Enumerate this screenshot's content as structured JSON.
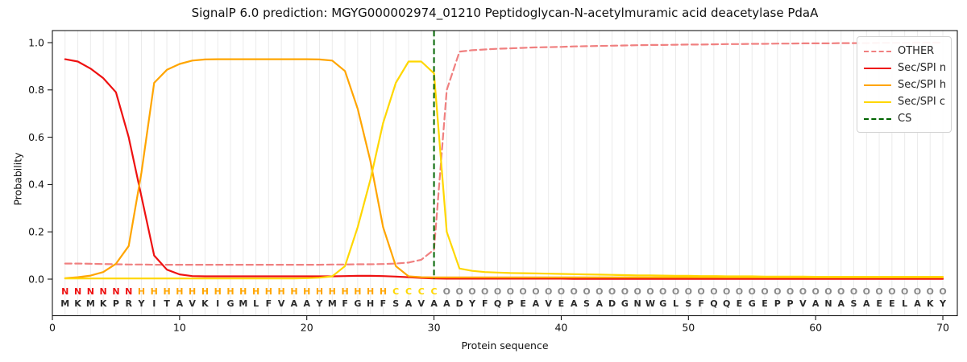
{
  "figure": {
    "title": "SignalP 6.0 prediction: MGYG000002974_01210 Peptidoglycan-N-acetylmuramic acid deacetylase PdaA"
  },
  "axes": {
    "xlabel": "Protein sequence",
    "ylabel": "Probability",
    "xtick_labels": [
      "0",
      "10",
      "20",
      "30",
      "40",
      "50",
      "60",
      "70"
    ],
    "xtick_values": [
      0,
      10,
      20,
      30,
      40,
      50,
      60,
      70
    ],
    "ytick_labels": [
      "0.0",
      "0.2",
      "0.4",
      "0.6",
      "0.8",
      "1.0"
    ],
    "ytick_values": [
      0.0,
      0.2,
      0.4,
      0.6,
      0.8,
      1.0
    ],
    "grid": "light vertical gridline at every residue position 1-70",
    "grid_color": "#ebebeb",
    "spine_color": "#000000"
  },
  "legend": {
    "position": "upper-right",
    "items": [
      {
        "label": "OTHER",
        "color": "#f08080",
        "line": "dashed"
      },
      {
        "label": "Sec/SPI n",
        "color": "#ee1111",
        "line": "solid"
      },
      {
        "label": "Sec/SPI h",
        "color": "#ffa500",
        "line": "solid"
      },
      {
        "label": "Sec/SPI c",
        "color": "#ffd700",
        "line": "solid"
      },
      {
        "label": "CS",
        "color": "#006400",
        "line": "dashed"
      }
    ]
  },
  "sequence_row": {
    "residues": "MKMKPRYITAVKIGMLFVAAYMFGHFSAVAADYFQPEAVEASADGNWGLSFQQEGEPPVANASAEELAKY",
    "classes": "NNNNNNHHHHHHHHHHHHHHHHHHHHCCCCOOOOOOOOOOOOOOOOOOOOOOOOOOOOOOOOOOOOOOOO",
    "class_colors": {
      "N": "#ee1111",
      "H": "#ffa500",
      "C": "#ffd700",
      "O": "#8a8a8a"
    },
    "residue_color": "#2b2b2b"
  },
  "chart_data": {
    "type": "line",
    "title": "SignalP 6.0 prediction: MGYG000002974_01210 Peptidoglycan-N-acetylmuramic acid deacetylase PdaA",
    "xlabel": "Protein sequence",
    "ylabel": "Probability",
    "x_positions": "residue index 1..70",
    "xlim": [
      0,
      71
    ],
    "ylim": [
      -0.15,
      1.05
    ],
    "legend_position": "upper right",
    "cs_line": {
      "name": "CS",
      "x": 30,
      "color": "#006400",
      "style": "dashed-vertical",
      "y_from": 0,
      "y_to": 1.05
    },
    "series": [
      {
        "name": "OTHER",
        "color": "#f08080",
        "style": "dashed",
        "width": 2.2,
        "values": [
          0.066,
          0.066,
          0.065,
          0.064,
          0.063,
          0.062,
          0.062,
          0.061,
          0.061,
          0.061,
          0.061,
          0.061,
          0.061,
          0.061,
          0.061,
          0.061,
          0.061,
          0.061,
          0.061,
          0.061,
          0.061,
          0.062,
          0.062,
          0.063,
          0.063,
          0.064,
          0.066,
          0.07,
          0.082,
          0.125,
          0.8,
          0.962,
          0.968,
          0.971,
          0.974,
          0.976,
          0.978,
          0.98,
          0.981,
          0.982,
          0.984,
          0.985,
          0.986,
          0.987,
          0.988,
          0.989,
          0.99,
          0.99,
          0.991,
          0.992,
          0.992,
          0.993,
          0.994,
          0.994,
          0.995,
          0.995,
          0.996,
          0.996,
          0.997,
          0.997,
          0.997,
          0.998,
          0.998,
          0.998,
          0.999,
          0.999,
          0.999,
          1.0,
          1.0,
          1.0
        ]
      },
      {
        "name": "Sec/SPI n",
        "color": "#ee1111",
        "style": "solid",
        "width": 2.2,
        "values": [
          0.93,
          0.92,
          0.89,
          0.85,
          0.79,
          0.6,
          0.35,
          0.1,
          0.04,
          0.02,
          0.013,
          0.012,
          0.012,
          0.012,
          0.012,
          0.012,
          0.012,
          0.012,
          0.012,
          0.012,
          0.012,
          0.012,
          0.013,
          0.014,
          0.014,
          0.013,
          0.011,
          0.008,
          0.005,
          0.003,
          0.002,
          0.002,
          0.002,
          0.002,
          0.002,
          0.002,
          0.002,
          0.002,
          0.002,
          0.002,
          0.001,
          0.001,
          0.001,
          0.001,
          0.001,
          0.001,
          0.001,
          0.001,
          0.001,
          0.001,
          0.001,
          0.001,
          0.001,
          0.001,
          0.001,
          0.001,
          0.001,
          0.001,
          0.001,
          0.001,
          0.001,
          0.001,
          0.001,
          0.001,
          0.001,
          0.001,
          0.001,
          0.001,
          0.001,
          0.001
        ]
      },
      {
        "name": "Sec/SPI h",
        "color": "#ffa500",
        "style": "solid",
        "width": 2.2,
        "values": [
          0.004,
          0.008,
          0.015,
          0.03,
          0.065,
          0.14,
          0.45,
          0.83,
          0.885,
          0.91,
          0.924,
          0.929,
          0.93,
          0.93,
          0.93,
          0.93,
          0.93,
          0.93,
          0.93,
          0.93,
          0.929,
          0.924,
          0.88,
          0.72,
          0.5,
          0.22,
          0.055,
          0.012,
          0.008,
          0.007,
          0.007,
          0.007,
          0.007,
          0.007,
          0.007,
          0.007,
          0.007,
          0.007,
          0.007,
          0.007,
          0.007,
          0.007,
          0.007,
          0.007,
          0.007,
          0.007,
          0.007,
          0.007,
          0.007,
          0.007,
          0.007,
          0.007,
          0.007,
          0.007,
          0.007,
          0.007,
          0.007,
          0.007,
          0.007,
          0.007,
          0.007,
          0.007,
          0.007,
          0.007,
          0.007,
          0.007,
          0.007,
          0.007,
          0.007,
          0.007
        ]
      },
      {
        "name": "Sec/SPI c",
        "color": "#ffd700",
        "style": "solid",
        "width": 2.2,
        "values": [
          0.003,
          0.003,
          0.003,
          0.003,
          0.003,
          0.003,
          0.003,
          0.003,
          0.003,
          0.003,
          0.003,
          0.003,
          0.003,
          0.003,
          0.003,
          0.003,
          0.003,
          0.003,
          0.003,
          0.004,
          0.006,
          0.012,
          0.055,
          0.22,
          0.42,
          0.66,
          0.83,
          0.92,
          0.92,
          0.87,
          0.2,
          0.045,
          0.035,
          0.03,
          0.028,
          0.026,
          0.025,
          0.024,
          0.023,
          0.022,
          0.021,
          0.02,
          0.019,
          0.018,
          0.017,
          0.016,
          0.016,
          0.015,
          0.014,
          0.014,
          0.013,
          0.013,
          0.012,
          0.012,
          0.012,
          0.011,
          0.011,
          0.011,
          0.011,
          0.01,
          0.01,
          0.01,
          0.01,
          0.01,
          0.01,
          0.01,
          0.01,
          0.01,
          0.01,
          0.01
        ]
      }
    ]
  }
}
